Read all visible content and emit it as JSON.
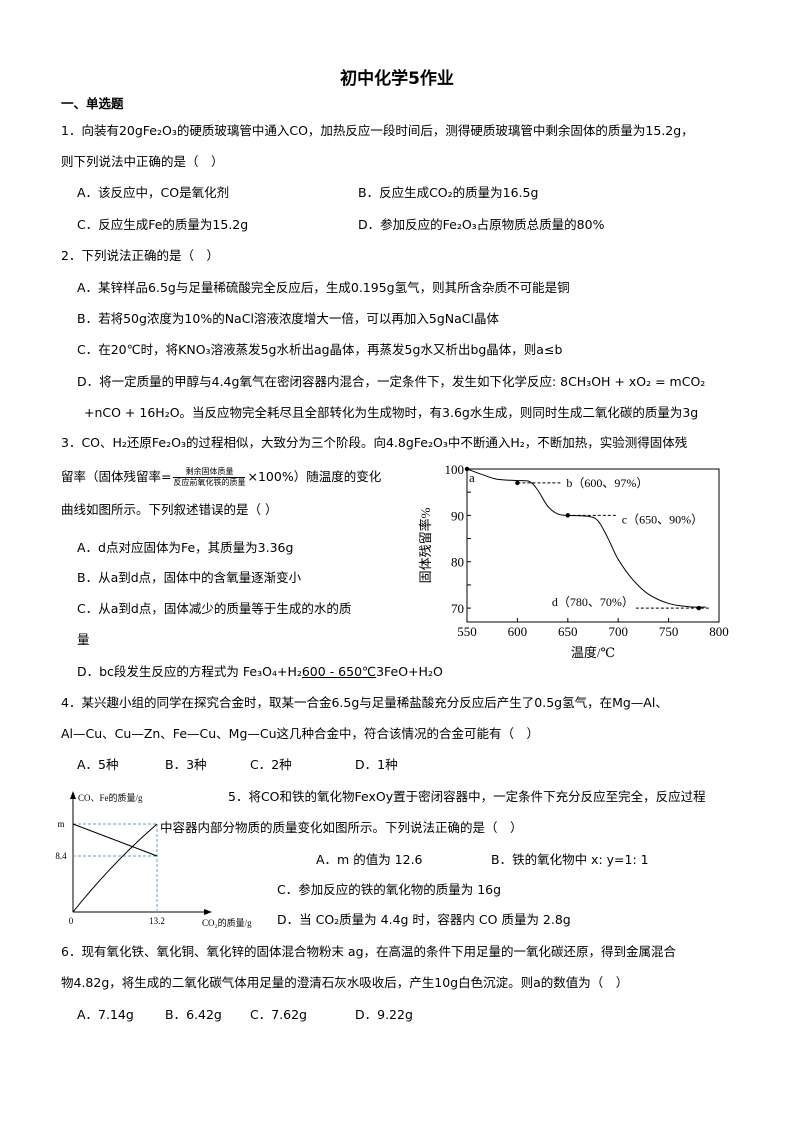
{
  "title": "初中化学5作业",
  "section": "一、单选题",
  "q1": {
    "line1": "1．向装有20gFe₂O₃的硬质玻璃管中通入CO，加热反应一段时间后，测得硬质玻璃管中剩余固体的质量为15.2g，",
    "line2": "则下列说法中正确的是（　）",
    "A": "A．该反应中，CO是氧化剂",
    "B": "B．反应生成CO₂的质量为16.5g",
    "C": "C．反应生成Fe的质量为15.2g",
    "D": "D．参加反应的Fe₂O₃占原物质总质量的80%"
  },
  "q2": {
    "line1": "2．下列说法正确的是（　）",
    "A": "A．某锌样品6.5g与足量稀硫酸完全反应后，生成0.195g氢气，则其所含杂质不可能是铜",
    "B": "B．若将50g浓度为10%的NaCl溶液浓度增大一倍，可以再加入5gNaCl晶体",
    "C": "C．在20℃时，将KNO₃溶液蒸发5g水析出ag晶体，再蒸发5g水又析出bg晶体，则a≤b",
    "D": "D．将一定质量的甲醇与4.4g氧气在密闭容器内混合，一定条件下，发生如下化学反应: 8CH₃OH + xO₂ = mCO₂",
    "D_cont": "+nCO + 16H₂O。当反应物完全耗尽且全部转化为生成物时，有3.6g水生成，则同时生成二氧化碳的质量为3g"
  },
  "q3": {
    "line1": "3．CO、H₂还原Fe₂O₃的过程相似，大致分为三个阶段。向4.8gFe₂O₃中不断通入H₂，不断加热，实验测得固体残",
    "line2_pre": "留率（固体残留率=",
    "frac_num": "剩余固体质量",
    "frac_den": "反应前氧化铁的质量",
    "line2_post": "×100%）随温度的变化",
    "line3": "曲线如图所示。下列叙述错误的是（ ）",
    "A": "A．d点对应固体为Fe，其质量为3.36g",
    "B": "B．从a到d点，固体中的含氧量逐渐变小",
    "C": "C．从a到d点，固体减少的质量等于生成的水的质",
    "C_cont": "量",
    "D_pre": "D．bc段发生反应的方程式为 Fe₃O₄+H₂",
    "D_cond": "600 - 650℃",
    "D_post": "3FeO+H₂O"
  },
  "q4": {
    "line1": "4．某兴趣小组的同学在探究合金时，取某一合金6.5g与足量稀盐酸充分反应后产生了0.5g氢气，在Mg—Al、",
    "line2": "Al—Cu、Cu—Zn、Fe—Cu、Mg—Cu这几种合金中，符合该情况的合金可能有（　）",
    "A": "A．5种",
    "B": "B．3种",
    "C": "C．2种",
    "D": "D．1种"
  },
  "q5": {
    "line1": "5．将CO和铁的氧化物FexOy置于密闭容器中，一定条件下充分反应至完全，反应过程",
    "line2": "中容器内部分物质的质量变化如图所示。下列说法正确的是（　）",
    "A": "A．m 的值为 12.6",
    "B": "B．铁的氧化物中 x: y=1: 1",
    "C": "C．参加反应的铁的氧化物的质量为 16g",
    "D": "D．当 CO₂质量为 4.4g 时，容器内 CO 质量为 2.8g"
  },
  "q6": {
    "line1": "6．现有氧化铁、氧化铜、氧化锌的固体混合物粉末 ag，在高温的条件下用足量的一氧化碳还原，得到金属混合",
    "line2": "物4.82g，将生成的二氧化碳气体用足量的澄清石灰水吸收后，产生10g白色沉淀。则a的数值为（　）",
    "A": "A．7.14g",
    "B": "B．6.42g",
    "C": "C．7.62g",
    "D": "D．9.22g"
  },
  "chart_data": [
    {
      "type": "line",
      "xlabel": "温度/℃",
      "ylabel": "固体残留率%",
      "xlim": [
        550,
        800
      ],
      "ylim": [
        67,
        100
      ],
      "xticks": [
        550,
        600,
        650,
        700,
        750,
        800
      ],
      "yticks": [
        70,
        80,
        90,
        100
      ],
      "x": [
        550,
        565,
        580,
        600,
        612,
        620,
        630,
        640,
        650,
        670,
        680,
        690,
        700,
        715,
        730,
        750,
        770,
        787
      ],
      "y": [
        100,
        98.8,
        97.8,
        97.5,
        97.3,
        95.5,
        92,
        90.3,
        90,
        89.8,
        88.8,
        85,
        80.5,
        76,
        73,
        71,
        70.3,
        70.2
      ],
      "points": [
        {
          "label": "a",
          "x": 550,
          "y": 100,
          "text": "a"
        },
        {
          "label": "b",
          "x": 600,
          "y": 97,
          "text": "b（600、97%）"
        },
        {
          "label": "c",
          "x": 650,
          "y": 90,
          "text": "c（650、90%）"
        },
        {
          "label": "d",
          "x": 780,
          "y": 70,
          "text": "d（780、70%）"
        }
      ]
    },
    {
      "type": "line",
      "ylabel": "CO、Fe的质量/g",
      "xlabel": "CO₂的质量/g",
      "origin_label": "0",
      "xtick_labels": [
        "13.2"
      ],
      "ytick_labels": [
        "m",
        "8.4"
      ],
      "series": [
        {
          "name": "CO",
          "from": [
            "0",
            "m"
          ],
          "to": [
            "13.2",
            "8.4"
          ]
        },
        {
          "name": "Fe",
          "from": [
            "0",
            "0"
          ],
          "to": [
            "13.2",
            "m"
          ]
        }
      ],
      "guide_color": "#5aaac8"
    }
  ]
}
